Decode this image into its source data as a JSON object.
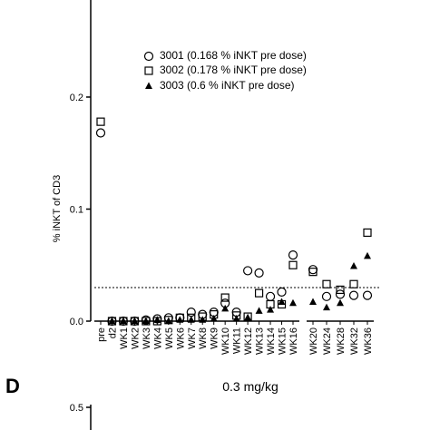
{
  "chart_data": {
    "type": "scatter",
    "y_label": "% iNKT of CD3",
    "categories": [
      "pre",
      "d2",
      "WK1",
      "WK2",
      "WK3",
      "WK4",
      "WK5",
      "WK6",
      "WK7",
      "WK8",
      "WK9",
      "WK10",
      "WK11",
      "WK12",
      "WK13",
      "WK14",
      "WK15",
      "WK16",
      "WK20",
      "WK24",
      "WK28",
      "WK32",
      "WK36"
    ],
    "series": [
      {
        "name": "3001 (0.168 % iNKT pre dose)",
        "marker": "circle",
        "color": "#000000",
        "values": [
          0.168,
          0,
          0,
          0,
          0.001,
          0.002,
          0.003,
          0.003,
          0.008,
          0.006,
          0.008,
          0.016,
          0.008,
          0.045,
          0.043,
          0.022,
          0.026,
          0.059,
          0.046,
          0.022,
          0.024,
          0.023,
          0.023
        ]
      },
      {
        "name": "3002 (0.178 % iNKT pre dose)",
        "marker": "square",
        "color": "#000000",
        "values": [
          0.178,
          0,
          0,
          0,
          0,
          0,
          0.001,
          0.003,
          0.003,
          0.004,
          0.006,
          0.021,
          0.005,
          0.004,
          0.025,
          0.015,
          0.015,
          0.05,
          0.044,
          0.033,
          0.028,
          0.033,
          0.079
        ]
      },
      {
        "name": "3003 (0.6 % iNKT pre dose)",
        "marker": "triangle",
        "color": "#000000",
        "values": [
          null,
          0,
          0,
          0,
          0,
          0.001,
          0,
          0.001,
          0.001,
          0.001,
          0.002,
          0.011,
          0.002,
          0.003,
          0.009,
          0.01,
          0.017,
          0.016,
          0.017,
          0.012,
          0.016,
          0.049,
          0.058
        ]
      }
    ],
    "reference_line": 0.03,
    "ylim": [
      0,
      0.285
    ],
    "yticks": [
      {
        "value": 0,
        "label": "0.0"
      },
      0.1,
      0.2
    ]
  },
  "panel_d": {
    "label": "D",
    "title": "0.3 mg/kg",
    "yticks": [
      0.5
    ]
  }
}
